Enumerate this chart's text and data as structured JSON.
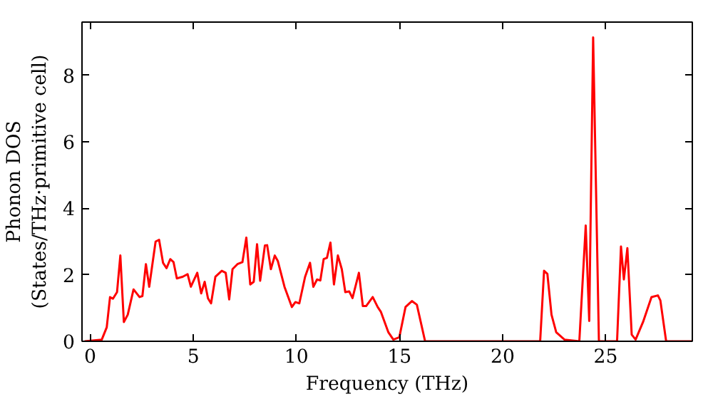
{
  "chart_data": {
    "type": "line",
    "xlabel": "Frequency (THz)",
    "ylabel": "Phonon DOS\n(States/THz·primitive cell)",
    "xlim": [
      -0.4,
      29.2
    ],
    "ylim": [
      0,
      9.6
    ],
    "xticks": [
      0,
      5,
      10,
      15,
      20,
      25
    ],
    "yticks": [
      0,
      2,
      4,
      6,
      8
    ],
    "grid": false,
    "series": [
      {
        "color": "#ff0000",
        "x": [
          -0.27,
          0.56,
          0.8,
          0.96,
          1.1,
          1.3,
          1.46,
          1.63,
          1.82,
          2.1,
          2.39,
          2.53,
          2.7,
          2.86,
          3.17,
          3.34,
          3.53,
          3.7,
          3.88,
          4.04,
          4.2,
          4.48,
          4.72,
          4.88,
          5.19,
          5.38,
          5.55,
          5.71,
          5.86,
          6.07,
          6.38,
          6.57,
          6.74,
          6.9,
          7.14,
          7.38,
          7.57,
          7.76,
          7.93,
          8.09,
          8.24,
          8.47,
          8.58,
          8.76,
          8.95,
          9.1,
          9.42,
          9.78,
          9.95,
          10.14,
          10.42,
          10.66,
          10.82,
          11.0,
          11.16,
          11.32,
          11.48,
          11.65,
          11.82,
          12.01,
          12.2,
          12.37,
          12.56,
          12.72,
          13.03,
          13.22,
          13.38,
          13.7,
          13.94,
          14.1,
          14.46,
          14.7,
          14.99,
          15.29,
          15.6,
          15.84,
          16.24,
          21.82,
          22.01,
          22.17,
          22.37,
          22.6,
          23.0,
          23.72,
          24.03,
          24.2,
          24.39,
          24.67,
          25.55,
          25.74,
          25.88,
          26.05,
          26.26,
          26.45,
          26.81,
          27.22,
          27.53,
          27.65,
          27.93,
          29.2
        ],
        "values": [
          0,
          0.05,
          0.42,
          1.33,
          1.28,
          1.48,
          2.58,
          0.58,
          0.8,
          1.56,
          1.33,
          1.36,
          2.32,
          1.64,
          3.0,
          3.05,
          2.36,
          2.2,
          2.47,
          2.38,
          1.89,
          1.94,
          2.02,
          1.64,
          2.06,
          1.44,
          1.79,
          1.29,
          1.14,
          1.94,
          2.12,
          2.06,
          1.26,
          2.17,
          2.32,
          2.38,
          3.12,
          1.71,
          1.79,
          2.92,
          1.82,
          2.88,
          2.89,
          2.17,
          2.58,
          2.41,
          1.64,
          1.03,
          1.18,
          1.14,
          1.94,
          2.36,
          1.64,
          1.86,
          1.83,
          2.47,
          2.51,
          2.97,
          1.71,
          2.58,
          2.17,
          1.48,
          1.5,
          1.3,
          2.06,
          1.06,
          1.06,
          1.33,
          1.03,
          0.88,
          0.27,
          0.05,
          0.12,
          1.03,
          1.21,
          1.1,
          0,
          0,
          2.12,
          2.03,
          0.8,
          0.27,
          0.05,
          0,
          3.48,
          0.61,
          9.14,
          0,
          0,
          2.85,
          1.86,
          2.8,
          0.2,
          0.05,
          0.58,
          1.33,
          1.38,
          1.23,
          0,
          0
        ]
      }
    ]
  }
}
